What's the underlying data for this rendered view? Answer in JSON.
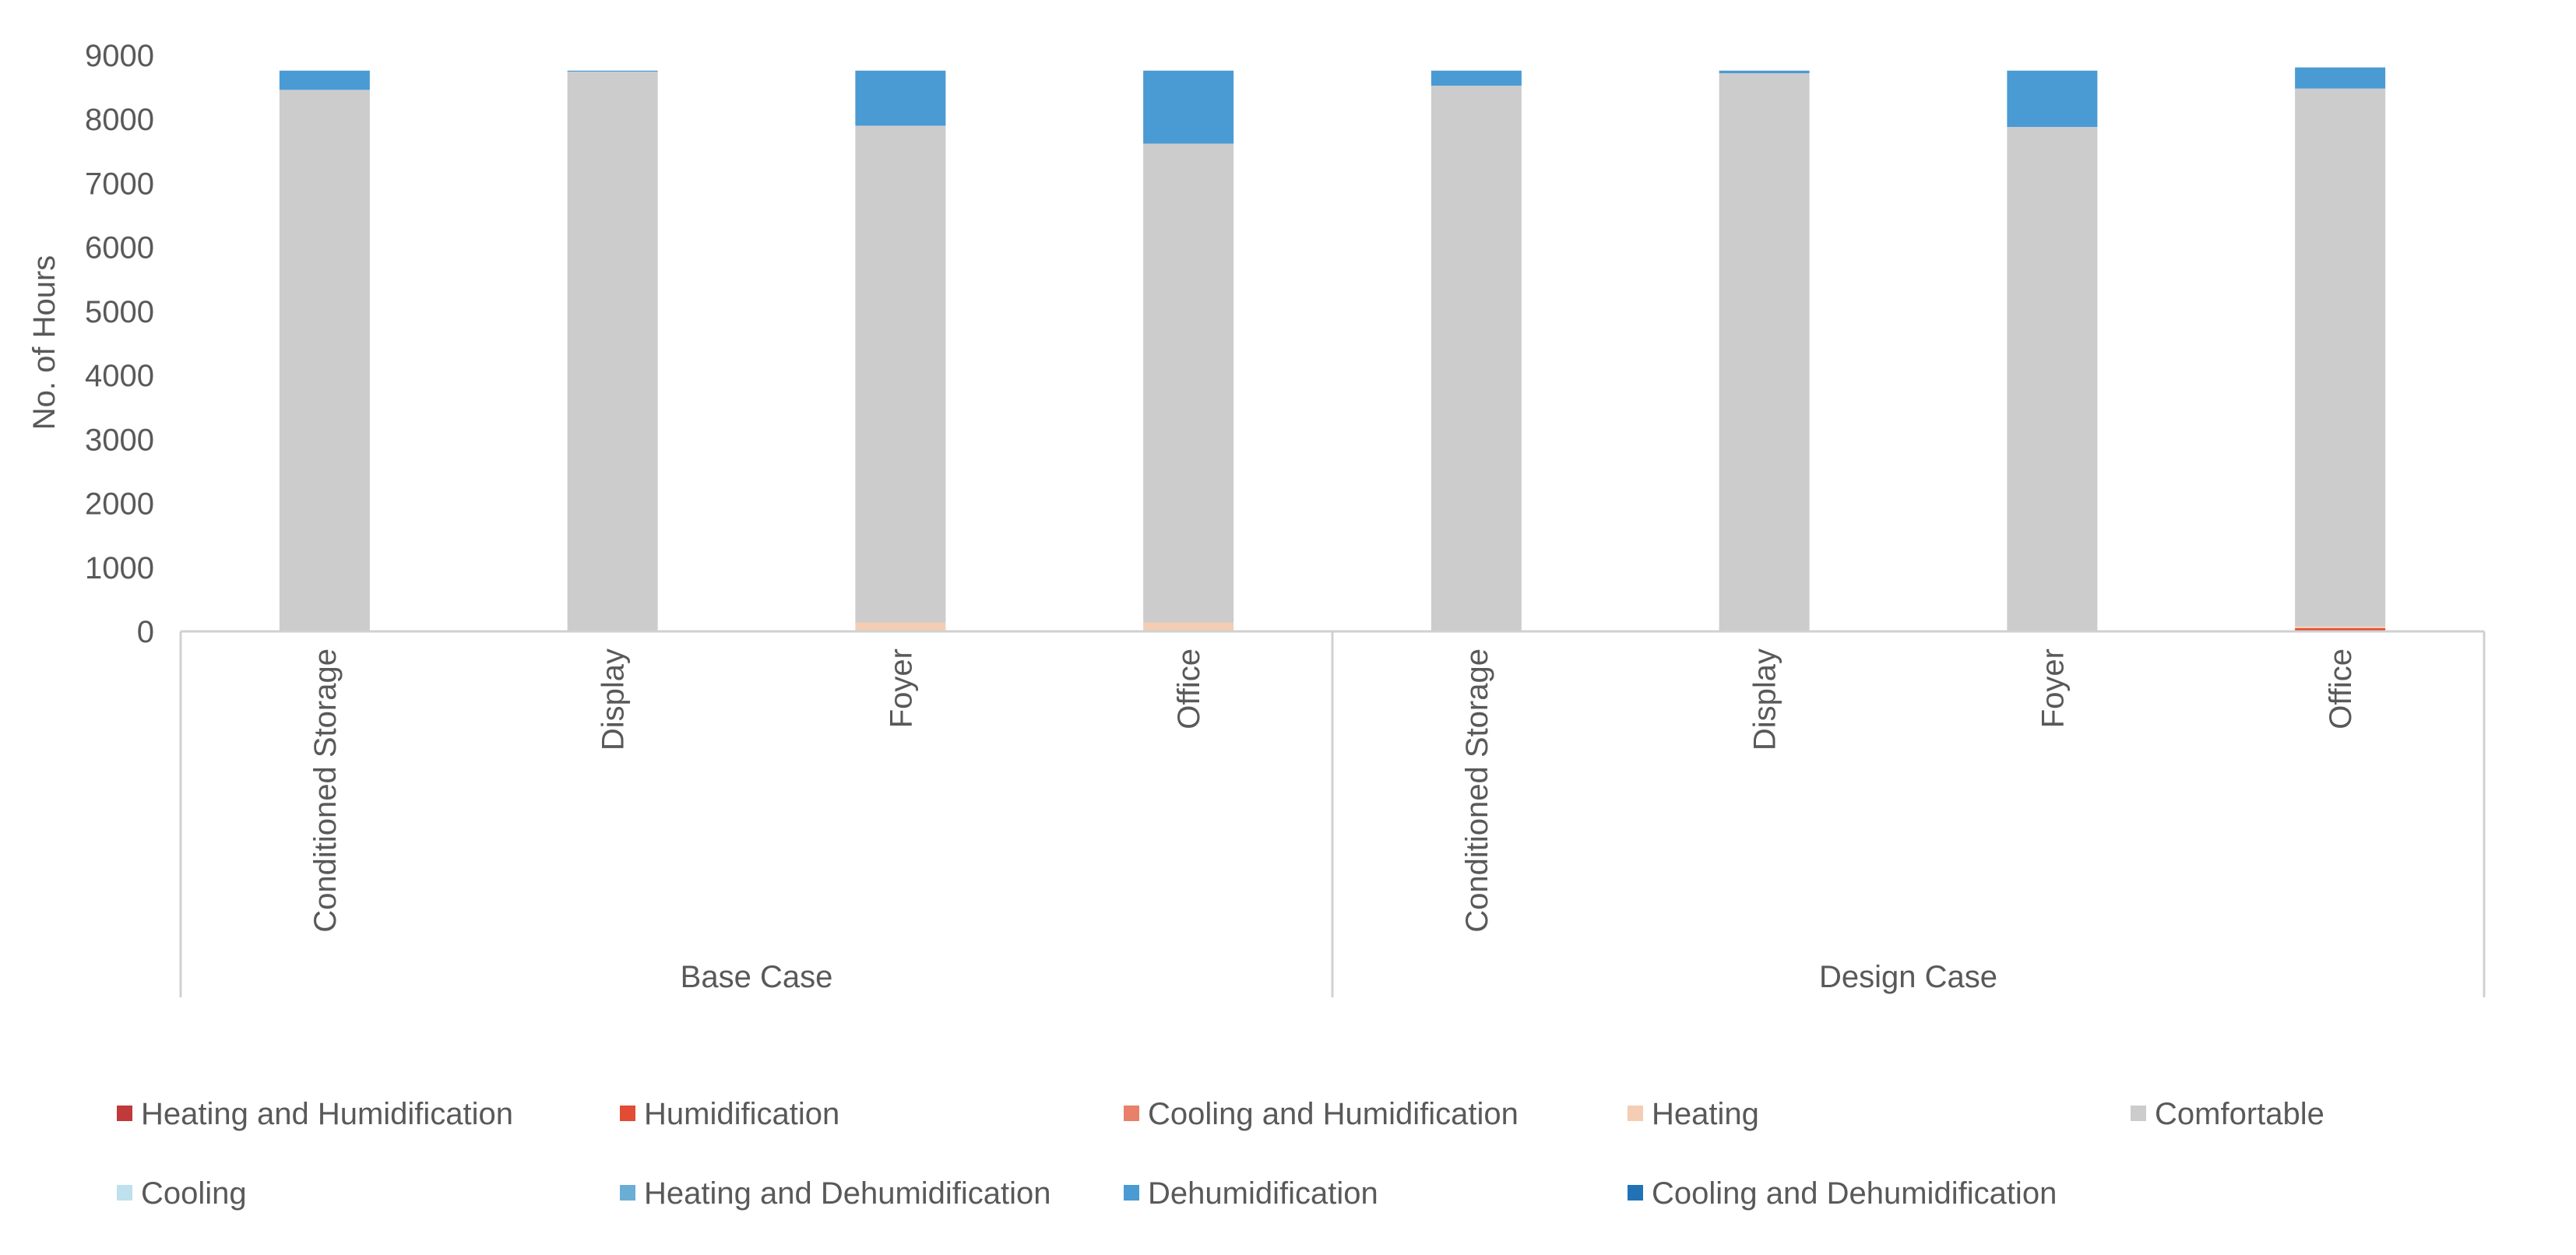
{
  "chart_data": {
    "type": "bar",
    "stacked": true,
    "title": "",
    "xlabel": "",
    "ylabel": "No. of Hours",
    "ylim": [
      0,
      9000
    ],
    "y_ticks": [
      0,
      1000,
      2000,
      3000,
      4000,
      5000,
      6000,
      7000,
      8000,
      9000
    ],
    "grid": false,
    "legend_position": "bottom",
    "groups": [
      {
        "name": "Base Case",
        "categories": [
          "Conditioned Storage",
          "Display",
          "Foyer",
          "Office"
        ]
      },
      {
        "name": "Design Case",
        "categories": [
          "Conditioned Storage",
          "Display",
          "Foyer",
          "Office"
        ]
      }
    ],
    "categories": [
      "Base Case / Conditioned Storage",
      "Base Case / Display",
      "Base Case / Foyer",
      "Base Case / Office",
      "Design Case / Conditioned Storage",
      "Design Case / Display",
      "Design Case / Foyer",
      "Design Case / Office"
    ],
    "series": [
      {
        "name": "Heating and Humidification",
        "color": "#c0393b",
        "values": [
          0,
          0,
          0,
          0,
          0,
          0,
          0,
          0
        ]
      },
      {
        "name": "Humidification",
        "color": "#e24b34",
        "values": [
          0,
          0,
          0,
          0,
          0,
          0,
          0,
          50
        ]
      },
      {
        "name": "Cooling and Humidification",
        "color": "#e8806a",
        "values": [
          0,
          0,
          0,
          0,
          0,
          0,
          0,
          0
        ]
      },
      {
        "name": "Heating",
        "color": "#f4cdb4",
        "values": [
          10,
          5,
          140,
          140,
          5,
          5,
          10,
          30
        ]
      },
      {
        "name": "Comfortable",
        "color": "#cccccc",
        "values": [
          8450,
          8740,
          7760,
          7480,
          8520,
          8715,
          7870,
          8400
        ]
      },
      {
        "name": "Cooling",
        "color": "#bfe0ee",
        "values": [
          0,
          0,
          0,
          0,
          0,
          0,
          0,
          0
        ]
      },
      {
        "name": "Heating and Dehumidification",
        "color": "#6aaed6",
        "values": [
          0,
          0,
          0,
          0,
          0,
          0,
          0,
          0
        ]
      },
      {
        "name": "Dehumidification",
        "color": "#4a9ad4",
        "values": [
          300,
          15,
          860,
          1140,
          235,
          40,
          880,
          330
        ]
      },
      {
        "name": "Cooling and Dehumidification",
        "color": "#2173b6",
        "values": [
          0,
          0,
          0,
          0,
          0,
          0,
          0,
          0
        ]
      }
    ]
  }
}
